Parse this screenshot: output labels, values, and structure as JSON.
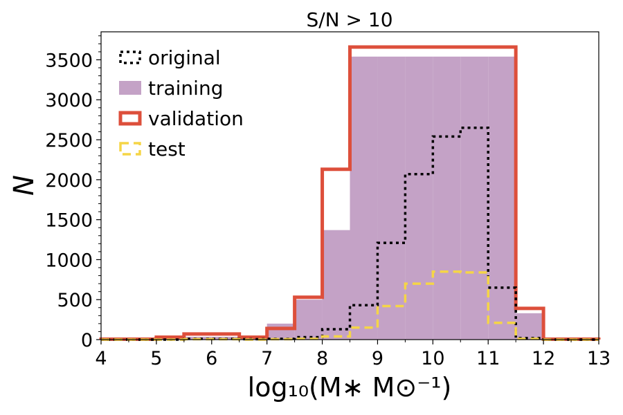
{
  "chart_data": {
    "type": "histogram",
    "title": "S/N > 10",
    "xlabel": "log₁₀(M∗ M⊙⁻¹)",
    "ylabel": "N",
    "xlim": [
      4,
      13
    ],
    "ylim": [
      0,
      3850
    ],
    "xticks": [
      4,
      5,
      6,
      7,
      8,
      9,
      10,
      11,
      12,
      13
    ],
    "yticks": [
      0,
      500,
      1000,
      1500,
      2000,
      2500,
      3000,
      3500
    ],
    "legend_position": "upper-left",
    "series": [
      {
        "name": "training",
        "style": "filled",
        "color": "#c4a2c6",
        "bin_width": 0.5,
        "edges": [
          4,
          4.5,
          5,
          5.5,
          6,
          6.5,
          7,
          7.5,
          8,
          8.5,
          9,
          9.5,
          10,
          10.5,
          11,
          11.5,
          12,
          12.5,
          13
        ],
        "counts": [
          5,
          5,
          15,
          35,
          35,
          20,
          200,
          500,
          1370,
          3540,
          3540,
          3540,
          3540,
          3540,
          3540,
          330,
          5,
          5
        ]
      },
      {
        "name": "validation",
        "style": "step",
        "color": "#dd4f3b",
        "bin_width": 0.5,
        "edges": [
          4,
          4.5,
          5,
          5.5,
          6,
          6.5,
          7,
          7.5,
          8,
          8.5,
          9,
          9.5,
          10,
          10.5,
          11,
          11.5,
          12,
          12.5,
          13
        ],
        "counts": [
          5,
          5,
          30,
          70,
          70,
          30,
          140,
          530,
          2130,
          3660,
          3660,
          3660,
          3660,
          3660,
          3660,
          390,
          5,
          5
        ]
      },
      {
        "name": "original",
        "style": "dotted-step",
        "color": "#000000",
        "bin_width": 0.5,
        "edges": [
          4,
          4.5,
          5,
          5.5,
          6,
          6.5,
          7,
          7.5,
          8,
          8.5,
          9,
          9.5,
          10,
          10.5,
          11,
          11.5,
          12,
          12.5,
          13
        ],
        "counts": [
          0,
          0,
          0,
          10,
          10,
          5,
          10,
          30,
          130,
          430,
          1210,
          2070,
          2540,
          2650,
          650,
          20,
          0,
          0
        ]
      },
      {
        "name": "test",
        "style": "dashed-step",
        "color": "#f5d547",
        "bin_width": 0.5,
        "edges": [
          4,
          4.5,
          5,
          5.5,
          6,
          6.5,
          7,
          7.5,
          8,
          8.5,
          9,
          9.5,
          10,
          10.5,
          11,
          11.5,
          12,
          12.5,
          13
        ],
        "counts": [
          0,
          0,
          0,
          5,
          5,
          0,
          5,
          10,
          40,
          150,
          420,
          700,
          850,
          840,
          210,
          10,
          0,
          0
        ]
      }
    ],
    "legend": [
      {
        "name": "original",
        "style": "dotted-step",
        "color": "#000000"
      },
      {
        "name": "training",
        "style": "filled",
        "color": "#c4a2c6"
      },
      {
        "name": "validation",
        "style": "step",
        "color": "#dd4f3b"
      },
      {
        "name": "test",
        "style": "dashed-step",
        "color": "#f5d547"
      }
    ]
  }
}
